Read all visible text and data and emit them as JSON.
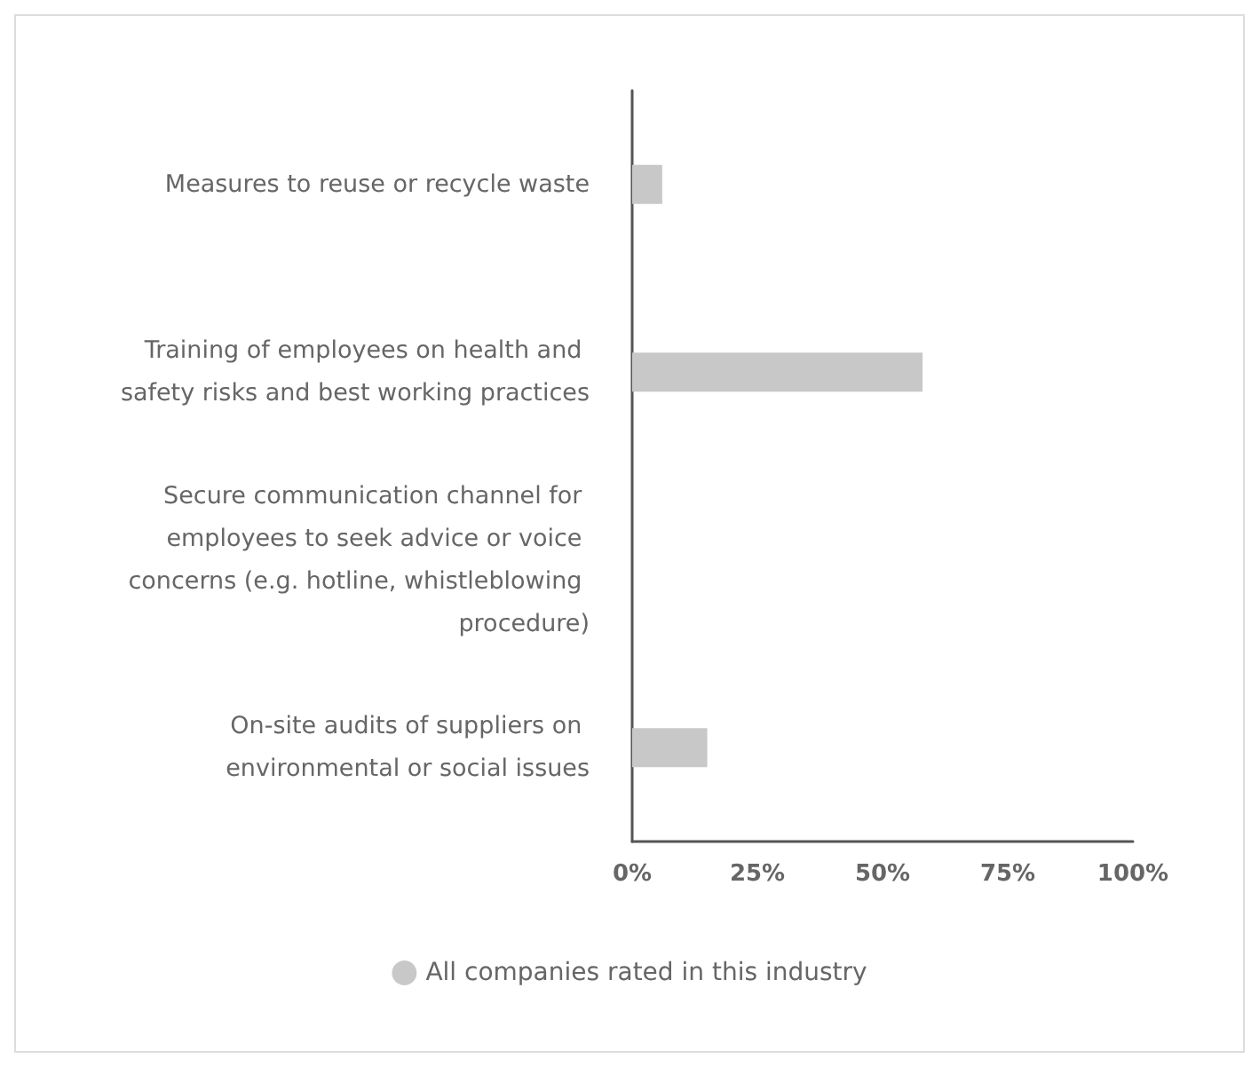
{
  "chart_data": {
    "type": "bar",
    "orientation": "horizontal",
    "categories": [
      "Measures to reuse or recycle waste",
      "Training of employees on health and safety risks and best working practices",
      "Secure communication channel for employees to seek advice or voice concerns (e.g. hotline, whistleblowing procedure)",
      "On-site audits of suppliers on environmental or social issues"
    ],
    "series": [
      {
        "name": "All companies rated in this industry",
        "color": "#c8c8c8",
        "values": [
          6,
          58,
          0,
          15
        ]
      }
    ],
    "xlim": [
      0,
      100
    ],
    "xticks": [
      {
        "value": 0,
        "label": "0%"
      },
      {
        "value": 25,
        "label": "25%"
      },
      {
        "value": 50,
        "label": "50%"
      },
      {
        "value": 75,
        "label": "75%"
      },
      {
        "value": 100,
        "label": "100%"
      }
    ],
    "grid": false,
    "legend": "bottom"
  }
}
